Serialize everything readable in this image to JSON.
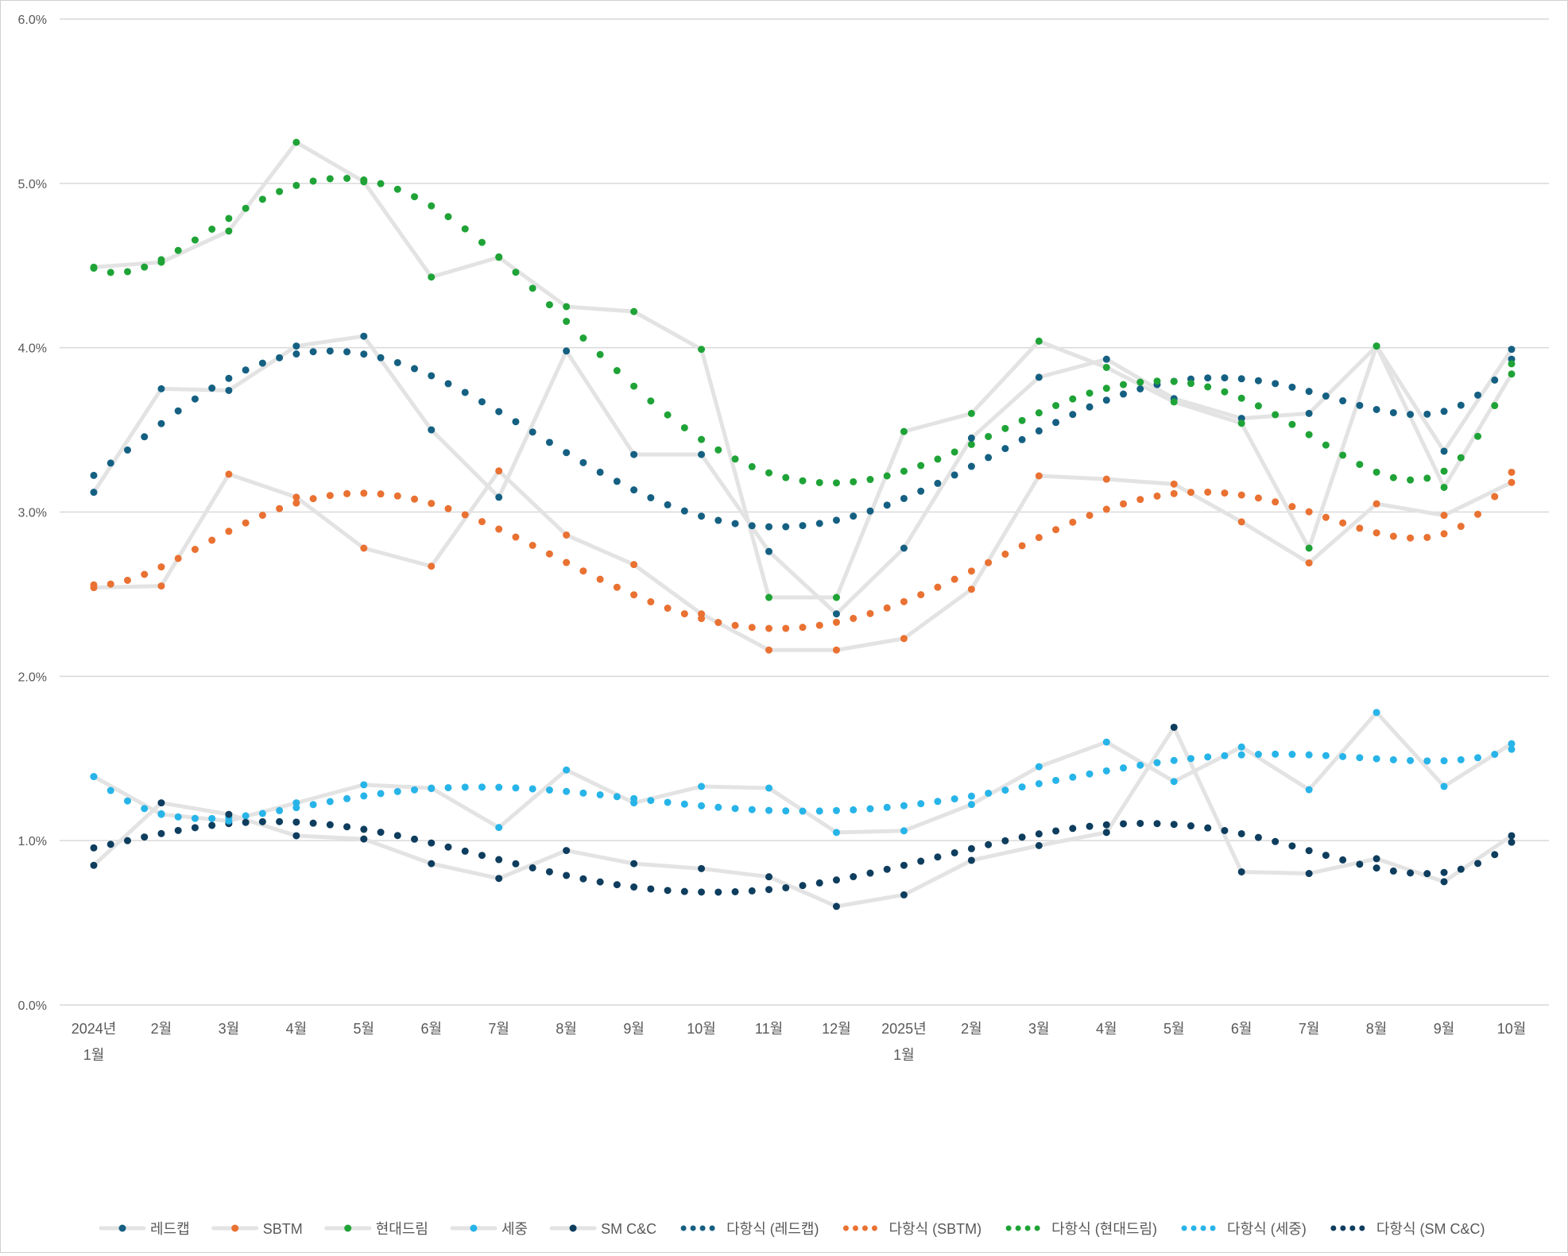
{
  "chart_data": {
    "type": "line",
    "title": "",
    "xlabel": "",
    "ylabel": "",
    "ylim": [
      0,
      6
    ],
    "y_ticks": [
      "0.0%",
      "1.0%",
      "2.0%",
      "3.0%",
      "4.0%",
      "5.0%",
      "6.0%"
    ],
    "grid": "horizontal",
    "legend_position": "bottom",
    "categories": [
      [
        "2024년",
        "1월"
      ],
      [
        "2월"
      ],
      [
        "3월"
      ],
      [
        "4월"
      ],
      [
        "5월"
      ],
      [
        "6월"
      ],
      [
        "7월"
      ],
      [
        "8월"
      ],
      [
        "9월"
      ],
      [
        "10월"
      ],
      [
        "11월"
      ],
      [
        "12월"
      ],
      [
        "2025년",
        "1월"
      ],
      [
        "2월"
      ],
      [
        "3월"
      ],
      [
        "4월"
      ],
      [
        "5월"
      ],
      [
        "6월"
      ],
      [
        "7월"
      ],
      [
        "8월"
      ],
      [
        "9월"
      ],
      [
        "10월"
      ]
    ],
    "line_color": "#e3e3e3",
    "series": [
      {
        "name": "레드캡",
        "color": "#156082",
        "values": [
          3.12,
          3.75,
          3.74,
          4.01,
          4.07,
          3.5,
          3.09,
          3.98,
          3.35,
          3.35,
          2.76,
          2.38,
          2.78,
          3.45,
          3.82,
          3.93,
          3.69,
          3.57,
          3.6,
          4.01,
          3.37,
          3.99
        ]
      },
      {
        "name": "SBTM",
        "color": "#e97132",
        "values": [
          2.54,
          2.55,
          3.23,
          3.09,
          2.78,
          2.67,
          3.25,
          2.86,
          2.68,
          2.38,
          2.16,
          2.16,
          2.23,
          2.53,
          3.22,
          3.2,
          3.17,
          2.94,
          2.69,
          3.05,
          2.98,
          3.18
        ]
      },
      {
        "name": "현대드림",
        "color": "#1fa337",
        "values": [
          4.49,
          4.52,
          4.71,
          5.25,
          5.01,
          4.43,
          4.55,
          4.25,
          4.22,
          3.99,
          2.48,
          2.48,
          3.49,
          3.6,
          4.04,
          3.88,
          3.67,
          3.54,
          2.78,
          4.01,
          3.15,
          3.84
        ]
      },
      {
        "name": "세중",
        "color": "#27b4e8",
        "values": [
          1.39,
          1.16,
          1.12,
          1.23,
          1.34,
          1.32,
          1.08,
          1.43,
          1.23,
          1.33,
          1.32,
          1.05,
          1.06,
          1.22,
          1.45,
          1.6,
          1.36,
          1.57,
          1.31,
          1.78,
          1.33,
          1.59
        ]
      },
      {
        "name": "SM C&C",
        "color": "#0e3d5e",
        "values": [
          0.85,
          1.23,
          1.16,
          1.03,
          1.01,
          0.86,
          0.77,
          0.94,
          0.86,
          0.83,
          0.78,
          0.6,
          0.67,
          0.88,
          0.97,
          1.05,
          1.69,
          0.81,
          0.8,
          0.89,
          0.75,
          1.03
        ]
      }
    ],
    "trendlines": [
      {
        "name": "다항식 (레드캡)",
        "series": "레드캡",
        "type": "polynomial",
        "order": 6
      },
      {
        "name": "다항식 (SBTM)",
        "series": "SBTM",
        "type": "polynomial",
        "order": 6
      },
      {
        "name": "다항식 (현대드림)",
        "series": "현대드림",
        "type": "polynomial",
        "order": 6
      },
      {
        "name": "다항식 (세중)",
        "series": "세중",
        "type": "polynomial",
        "order": 6
      },
      {
        "name": "다항식 (SM C&C)",
        "series": "SM C&C",
        "type": "polynomial",
        "order": 6
      }
    ]
  }
}
